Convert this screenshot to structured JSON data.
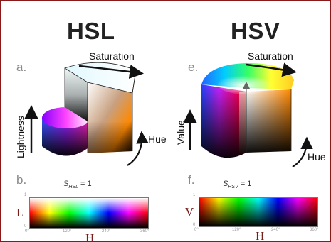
{
  "hsl": {
    "title": "HSL",
    "panel_a": "a.",
    "panel_b": "b.",
    "saturation": "Saturation",
    "hue": "Hue",
    "axis_vertical": "Lightness",
    "strip_label_main": "S",
    "strip_label_sub": "HSL",
    "strip_label_eq": "= 1",
    "strip_axis_letter": "L",
    "strip_hue_letter": "H",
    "y_ticks": [
      "1",
      "0"
    ],
    "x_ticks": [
      "0°",
      "120°",
      "240°",
      "360°"
    ]
  },
  "hsv": {
    "title": "HSV",
    "panel_e": "e.",
    "panel_f": "f.",
    "saturation": "Saturation",
    "hue": "Hue",
    "axis_vertical": "Value",
    "strip_label_main": "S",
    "strip_label_sub": "HSV",
    "strip_label_eq": "= 1",
    "strip_axis_letter": "V",
    "strip_hue_letter": "H",
    "y_ticks": [
      "1",
      "0"
    ],
    "x_ticks": [
      "0°",
      "120°",
      "240°",
      "360°"
    ]
  },
  "colors": {
    "frame_border": "#8a1a1a",
    "letter_accent": "#7a1c1c"
  }
}
